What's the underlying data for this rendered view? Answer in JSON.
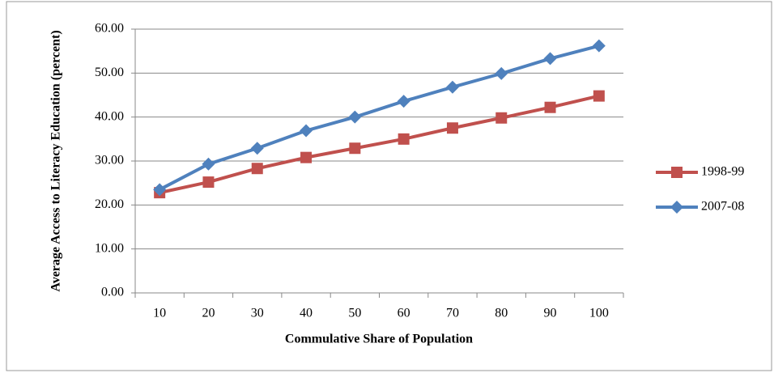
{
  "chart_data": {
    "type": "line",
    "xlabel": "Commulative Share of Population",
    "ylabel": "Average Access to Literacy Education (percent)",
    "categories": [
      10,
      20,
      30,
      40,
      50,
      60,
      70,
      80,
      90,
      100
    ],
    "series": [
      {
        "name": "1998-99",
        "color": "#c0504d",
        "marker": "square",
        "values": [
          22.8,
          25.2,
          28.3,
          30.8,
          32.9,
          35.0,
          37.5,
          39.8,
          42.2,
          44.8
        ]
      },
      {
        "name": "2007-08",
        "color": "#4f81bd",
        "marker": "diamond",
        "values": [
          23.5,
          29.3,
          32.9,
          36.9,
          40.0,
          43.6,
          46.8,
          49.9,
          53.3,
          56.2
        ]
      }
    ],
    "ylim": [
      0,
      60
    ],
    "yticks": [
      {
        "value": 0,
        "label": "0.00"
      },
      {
        "value": 10,
        "label": "10.00"
      },
      {
        "value": 20,
        "label": "20.00"
      },
      {
        "value": 30,
        "label": "30.00"
      },
      {
        "value": 40,
        "label": "40.00"
      },
      {
        "value": 50,
        "label": "50.00"
      },
      {
        "value": 60,
        "label": "60.00"
      }
    ],
    "grid": true,
    "legend": "right"
  }
}
